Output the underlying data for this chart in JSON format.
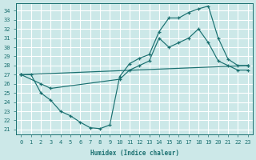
{
  "xlabel": "Humidex (Indice chaleur)",
  "bg_color": "#cce8e8",
  "grid_color": "#ffffff",
  "line_color": "#1a7070",
  "xlim": [
    -0.5,
    23.5
  ],
  "ylim": [
    20.5,
    34.8
  ],
  "xticks": [
    0,
    1,
    2,
    3,
    4,
    5,
    6,
    7,
    8,
    9,
    10,
    11,
    12,
    13,
    14,
    15,
    16,
    17,
    18,
    19,
    20,
    21,
    22,
    23
  ],
  "yticks": [
    21,
    22,
    23,
    24,
    25,
    26,
    27,
    28,
    29,
    30,
    31,
    32,
    33,
    34
  ],
  "line1_x": [
    0,
    1,
    2,
    3,
    4,
    5,
    6,
    7,
    8,
    9,
    10,
    11,
    12,
    13,
    14,
    15,
    16,
    17,
    18,
    19,
    20,
    21,
    22,
    23
  ],
  "line1_y": [
    27,
    27,
    25,
    24.2,
    23,
    22.5,
    21.8,
    21.2,
    21.1,
    21.5,
    26.8,
    28.2,
    28.8,
    29.2,
    31.7,
    33.2,
    33.2,
    33.8,
    34.2,
    34.5,
    31,
    28.7,
    28,
    28
  ],
  "line2_x": [
    0,
    23
  ],
  "line2_y": [
    27,
    28
  ],
  "line3_x": [
    0,
    2,
    3,
    10,
    11,
    12,
    13,
    14,
    15,
    16,
    17,
    18,
    19,
    20,
    21,
    22,
    23
  ],
  "line3_y": [
    27,
    26,
    25.5,
    26.5,
    27.5,
    28,
    28.5,
    31,
    30,
    30.5,
    31,
    32,
    30.5,
    28.5,
    28,
    27.5,
    27.5
  ]
}
